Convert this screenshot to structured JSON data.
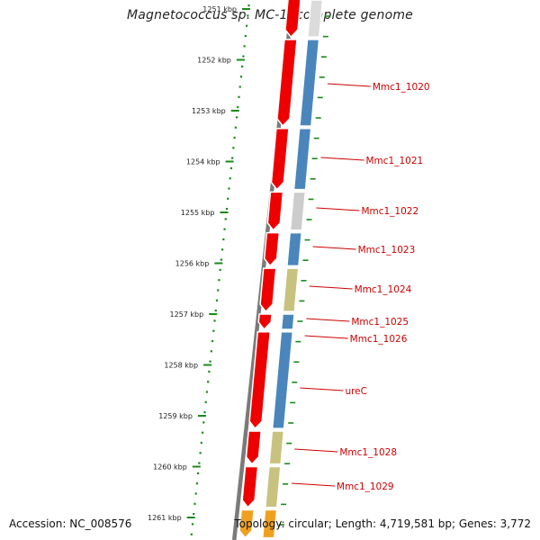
{
  "title": "Magnetococcus sp. MC-1, complete genome",
  "footer": {
    "accession": "Accession: NC_008576",
    "topology": "Topology: circular; Length: 4,719,581 bp; Genes: 3,772"
  },
  "scale": {
    "ticks": [
      "1251 kbp",
      "1252 kbp",
      "1253 kbp",
      "1254 kbp",
      "1255 kbp",
      "1256 kbp",
      "1257 kbp",
      "1258 kbp",
      "1259 kbp",
      "1260 kbp",
      "1261 kbp"
    ]
  },
  "genes": [
    {
      "label": "",
      "kbp_start": 1250.7,
      "kbp_end": 1251.55,
      "cog_color": "#dbdbdb"
    },
    {
      "label": "Mmc1_1020",
      "kbp_start": 1251.6,
      "kbp_end": 1253.3,
      "cog_color": "#4a86bb"
    },
    {
      "label": "Mmc1_1021",
      "kbp_start": 1253.35,
      "kbp_end": 1254.55,
      "cog_color": "#4a86bb"
    },
    {
      "label": "Mmc1_1022",
      "kbp_start": 1254.6,
      "kbp_end": 1255.35,
      "cog_color": "#cccccc"
    },
    {
      "label": "Mmc1_1023",
      "kbp_start": 1255.4,
      "kbp_end": 1256.05,
      "cog_color": "#4a86bb"
    },
    {
      "label": "Mmc1_1024",
      "kbp_start": 1256.1,
      "kbp_end": 1256.95,
      "cog_color": "#c8c27f"
    },
    {
      "label": "Mmc1_1025",
      "kbp_start": 1257.0,
      "kbp_end": 1257.3,
      "cog_color": "#4a86bb"
    },
    {
      "label": "Mmc1_1026",
      "kbp_start": 1257.35,
      "kbp_end": 1259.25,
      "cog_color": "#4a86bb"
    },
    {
      "label": "ureC",
      "kbp_start": 1257.35,
      "kbp_end": 1259.25,
      "cog_color": "#4a86bb"
    },
    {
      "label": "Mmc1_1028",
      "kbp_start": 1259.3,
      "kbp_end": 1259.95,
      "cog_color": "#c8c27f"
    },
    {
      "label": "Mmc1_1029",
      "kbp_start": 1260.0,
      "kbp_end": 1260.8,
      "cog_color": "#c8c27f"
    },
    {
      "label": "",
      "kbp_start": 1260.85,
      "kbp_end": 1261.4,
      "cog_color": "#f0a020"
    }
  ],
  "colors": {
    "cds": "#ee0000",
    "backbone": "#7a7a7a",
    "tick": "#1a8a1a",
    "label": "#cc0000"
  }
}
